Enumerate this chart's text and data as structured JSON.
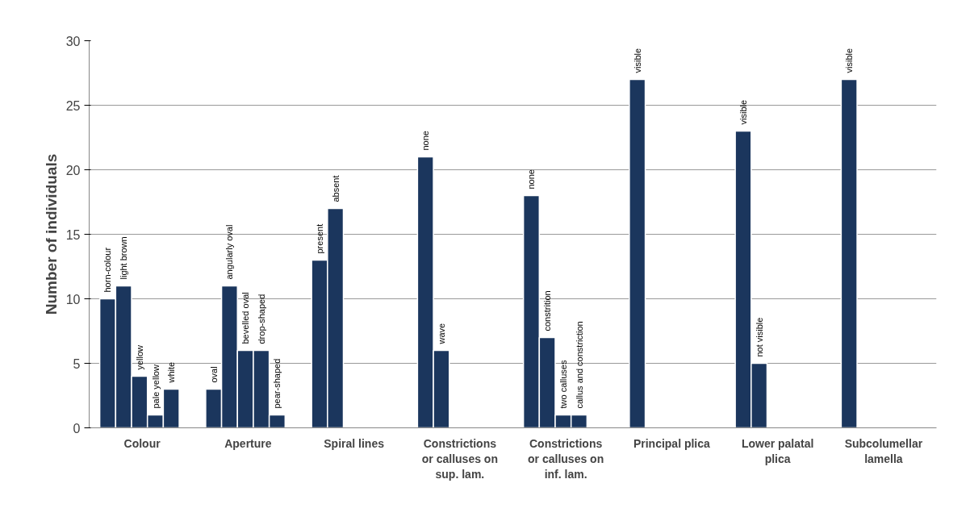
{
  "chart_data": {
    "type": "bar",
    "ylabel": "Number of individuals",
    "categories": [
      "Colour",
      "Aperture",
      "Spiral lines",
      "Constrictions or calluses on sup. lam.",
      "Constrictions or calluses on inf. lam.",
      "Principal plica",
      "Lower palatal plica",
      "Subcolumellar lamella"
    ],
    "series": [
      {
        "color": "#1b365d",
        "values": [
          10,
          3,
          13,
          21,
          18,
          27,
          23,
          27
        ],
        "value_labels": [
          "horn-colour",
          "oval",
          "present",
          "none",
          "none",
          "visible",
          "visible",
          "visible"
        ]
      },
      {
        "color": "#1b365d",
        "values": [
          11,
          11,
          17,
          6,
          7,
          null,
          5,
          null
        ],
        "value_labels": [
          "light brown",
          "angularly oval",
          "absent",
          "wave",
          "constrition",
          null,
          "not visible",
          null
        ]
      },
      {
        "color": "#1b365d",
        "values": [
          4,
          6,
          null,
          null,
          1,
          null,
          null,
          null
        ],
        "value_labels": [
          "yellow",
          "bevelled oval",
          null,
          null,
          "two calluses",
          null,
          null,
          null
        ]
      },
      {
        "color": "#1b365d",
        "values": [
          1,
          6,
          null,
          null,
          1,
          null,
          null,
          null
        ],
        "value_labels": [
          "pale yellow",
          "drop-shaped",
          null,
          null,
          "callus and constriction",
          null,
          null,
          null
        ]
      },
      {
        "color": "#1b365d",
        "values": [
          3,
          1,
          null,
          null,
          null,
          null,
          null,
          null
        ],
        "value_labels": [
          "white",
          "pear-shaped",
          null,
          null,
          null,
          null,
          null,
          null
        ]
      }
    ],
    "ylim": [
      0,
      30
    ],
    "yticks": [
      0,
      5,
      10,
      15,
      20,
      25,
      30
    ],
    "grid": "y"
  }
}
